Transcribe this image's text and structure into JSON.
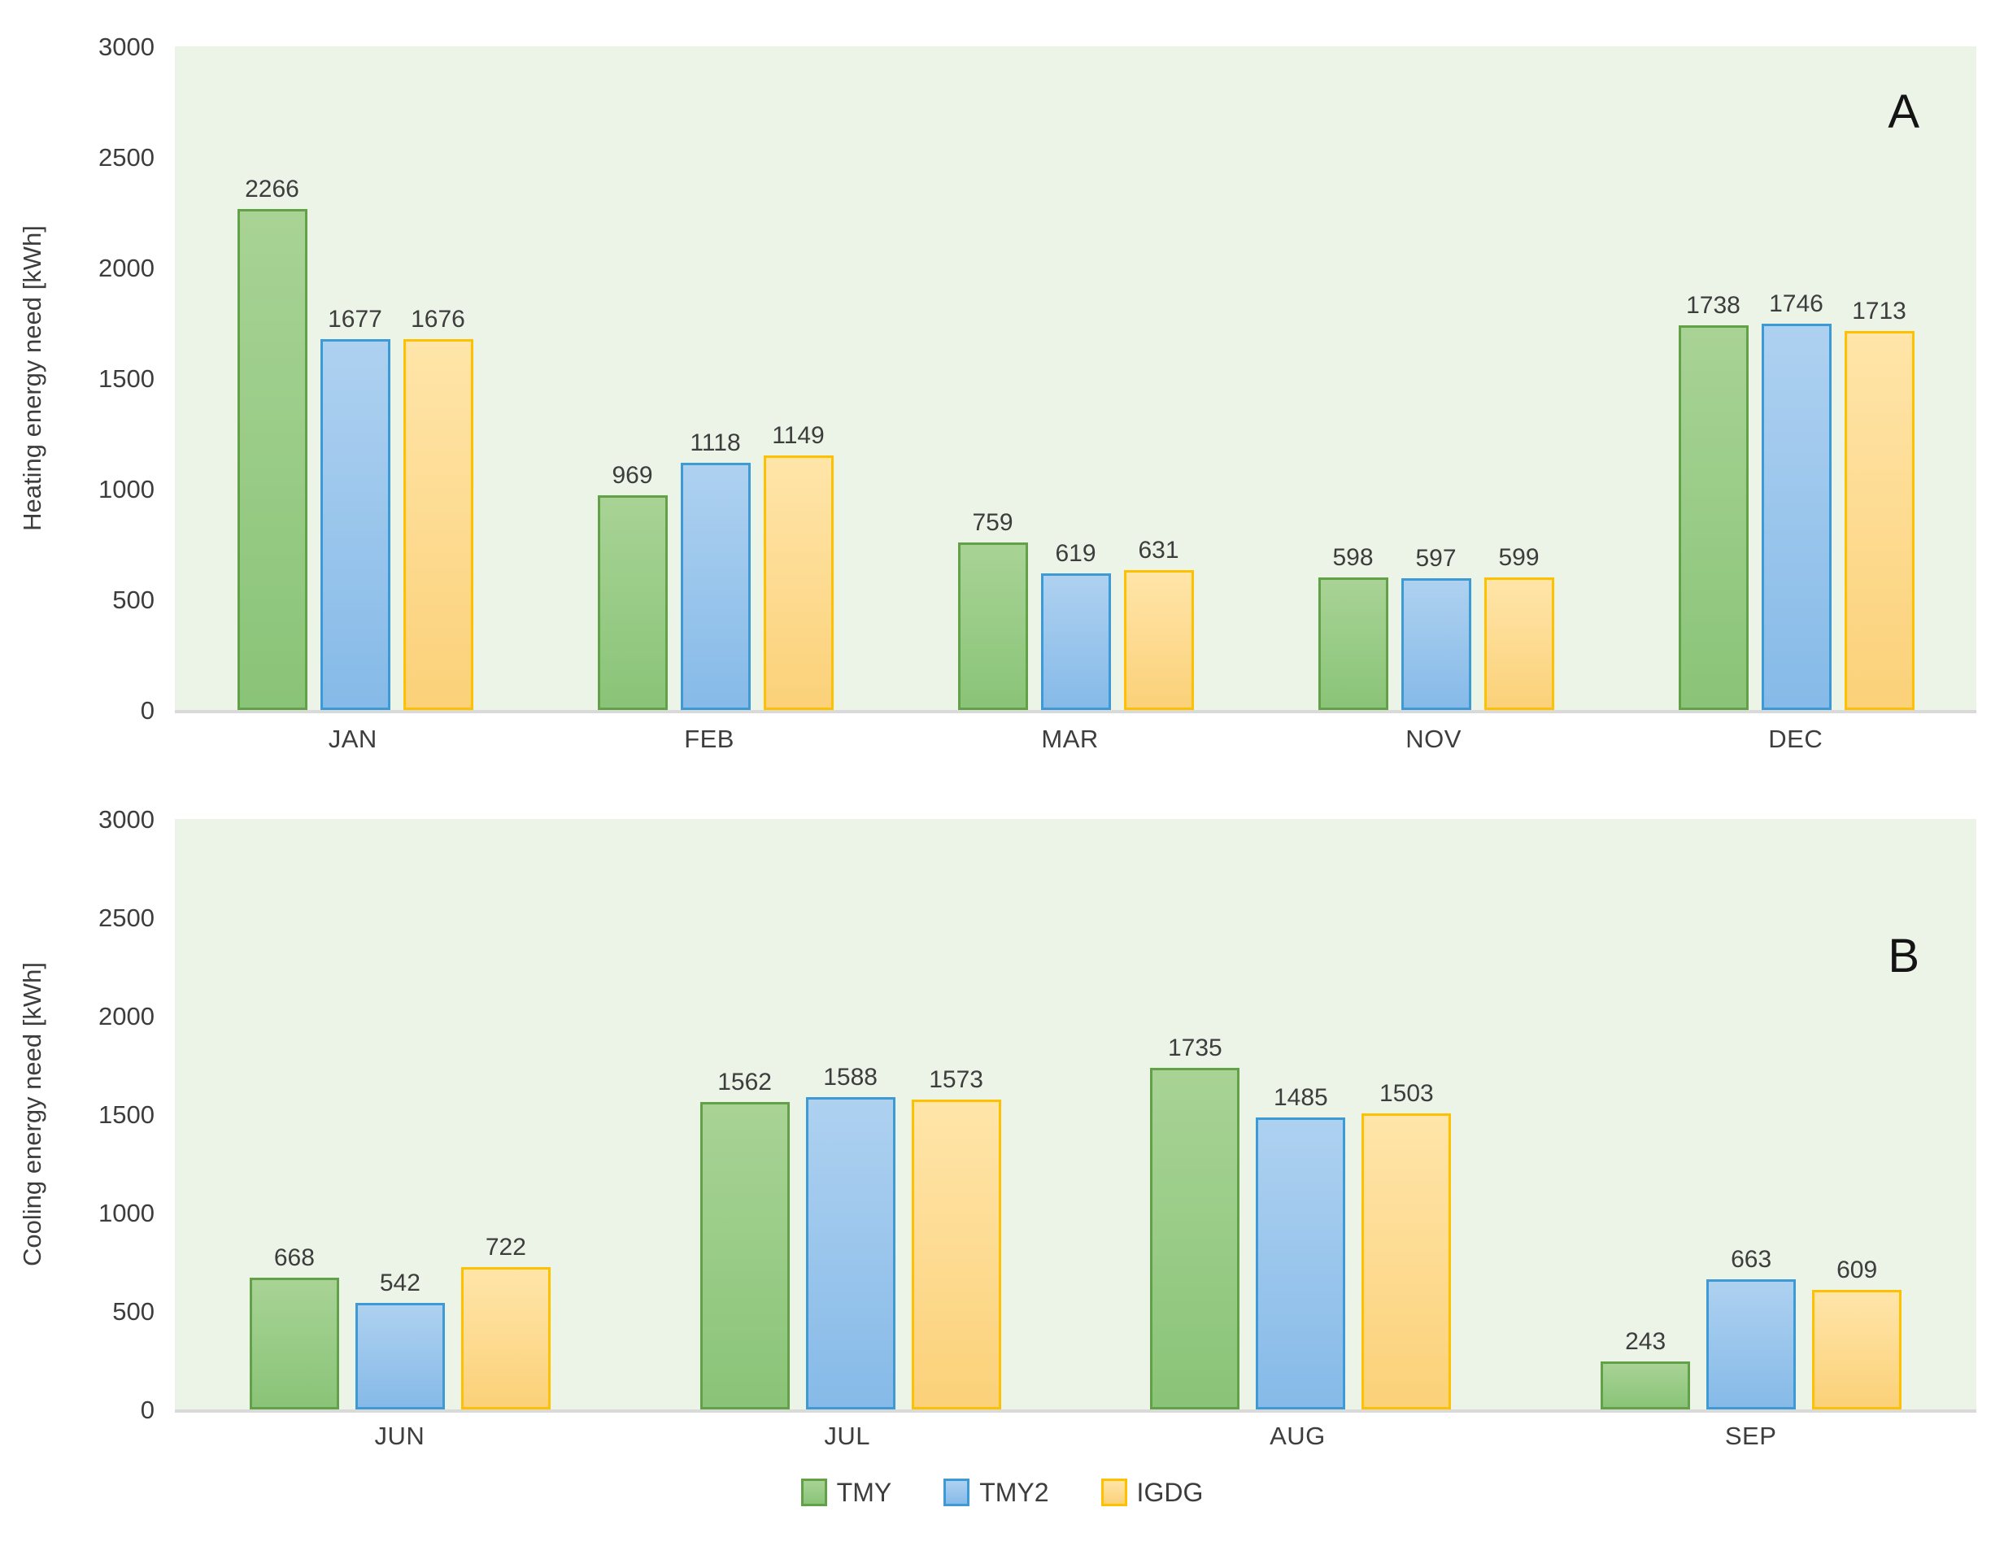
{
  "chart_data": [
    {
      "type": "bar",
      "panel_label": "A",
      "ylabel": "Heating energy need [kWh]",
      "xlabel": "",
      "categories": [
        "JAN",
        "FEB",
        "MAR",
        "NOV",
        "DEC"
      ],
      "series": [
        {
          "name": "TMY",
          "values": [
            2266,
            969,
            759,
            598,
            1738
          ]
        },
        {
          "name": "TMY2",
          "values": [
            1677,
            1118,
            619,
            597,
            1746
          ]
        },
        {
          "name": "IGDG",
          "values": [
            1676,
            1149,
            631,
            599,
            1713
          ]
        }
      ],
      "ylim": [
        0,
        3000
      ],
      "yticks": [
        3000,
        2500,
        2000,
        1500,
        1000,
        500,
        0
      ],
      "grid": false,
      "legend_position": "bottom-shared"
    },
    {
      "type": "bar",
      "panel_label": "B",
      "ylabel": "Cooling energy need [kWh]",
      "xlabel": "",
      "categories": [
        "JUN",
        "JUL",
        "AUG",
        "SEP"
      ],
      "series": [
        {
          "name": "TMY",
          "values": [
            668,
            1562,
            1735,
            243
          ]
        },
        {
          "name": "TMY2",
          "values": [
            542,
            1588,
            1485,
            663
          ]
        },
        {
          "name": "IGDG",
          "values": [
            722,
            1573,
            1503,
            609
          ]
        }
      ],
      "ylim": [
        0,
        3000
      ],
      "yticks": [
        3000,
        2500,
        2000,
        1500,
        1000,
        500,
        0
      ],
      "grid": false,
      "legend_position": "bottom-shared"
    }
  ],
  "legend": {
    "items": [
      {
        "label": "TMY"
      },
      {
        "label": "TMY2"
      },
      {
        "label": "IGDG"
      }
    ]
  },
  "colors": {
    "plot_background": "#ecf4e7",
    "axis_line": "#d9d9d9",
    "label_text": "#3d3d3d",
    "series": {
      "TMY": {
        "fill_top": "#a8d395",
        "fill_bottom": "#8ac478",
        "border": "#62a147"
      },
      "TMY2": {
        "fill_top": "#aed1f0",
        "fill_bottom": "#86bae8",
        "border": "#3d9ad4"
      },
      "IGDG": {
        "fill_top": "#ffe5a9",
        "fill_bottom": "#fbd179",
        "border": "#fdc101"
      }
    }
  }
}
